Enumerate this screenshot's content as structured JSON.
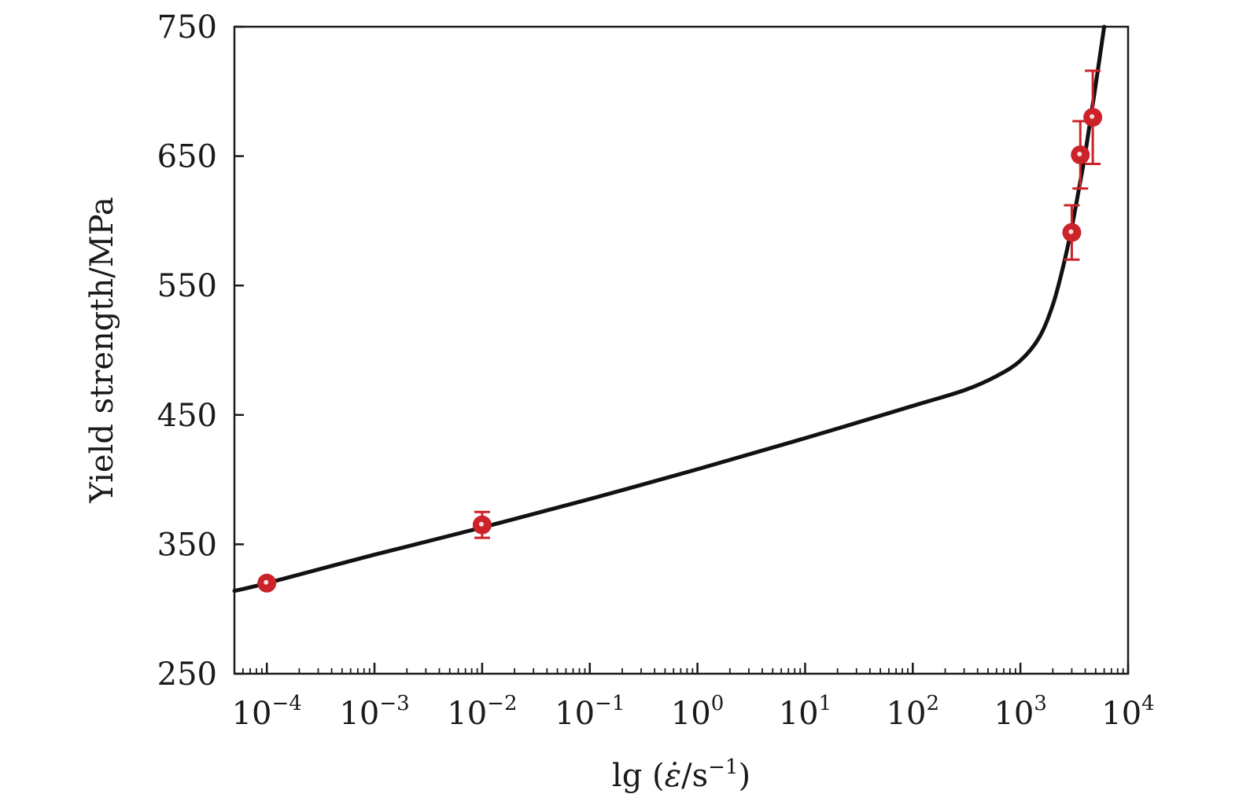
{
  "chart_data": {
    "type": "scatter",
    "title": "",
    "xlabel": {
      "prefix": "lg (",
      "symbol": "ε̇",
      "slash_unit": "/s",
      "unit_exponent": "−1",
      "suffix": ")"
    },
    "ylabel": "Yield strength/MPa",
    "x_scale": "log",
    "xlim": [
      5e-05,
      10000
    ],
    "ylim": [
      250,
      750
    ],
    "x_ticks": [
      {
        "value": 0.0001,
        "base": "10",
        "exp": "−4"
      },
      {
        "value": 0.001,
        "base": "10",
        "exp": "−3"
      },
      {
        "value": 0.01,
        "base": "10",
        "exp": "−2"
      },
      {
        "value": 0.1,
        "base": "10",
        "exp": "−1"
      },
      {
        "value": 1,
        "base": "10",
        "exp": "0"
      },
      {
        "value": 10,
        "base": "10",
        "exp": "1"
      },
      {
        "value": 100,
        "base": "10",
        "exp": "2"
      },
      {
        "value": 1000,
        "base": "10",
        "exp": "3"
      },
      {
        "value": 10000,
        "base": "10",
        "exp": "4"
      }
    ],
    "y_ticks": [
      250,
      350,
      450,
      550,
      650,
      750
    ],
    "grid": false,
    "legend": "none",
    "series": [
      {
        "kind": "fit-line",
        "color": "#111111",
        "x": [
          5e-05,
          0.0001,
          0.001,
          0.01,
          0.1,
          1,
          10,
          100,
          300,
          600,
          1000,
          1500,
          2000,
          2500,
          3000,
          3500,
          4000,
          4500,
          5000,
          6000
        ],
        "y": [
          314,
          320,
          342,
          363,
          385,
          408,
          432,
          457,
          469,
          480,
          492,
          510,
          535,
          565,
          595,
          625,
          652,
          680,
          705,
          750
        ]
      },
      {
        "kind": "measured",
        "color": "#cc2229",
        "points": [
          {
            "x": 0.0001,
            "y": 320,
            "err": 3
          },
          {
            "x": 0.01,
            "y": 365,
            "err": 10
          },
          {
            "x": 3000,
            "y": 591,
            "err": 21
          },
          {
            "x": 3600,
            "y": 651,
            "err": 26
          },
          {
            "x": 4700,
            "y": 680,
            "err": 36
          }
        ]
      }
    ]
  }
}
